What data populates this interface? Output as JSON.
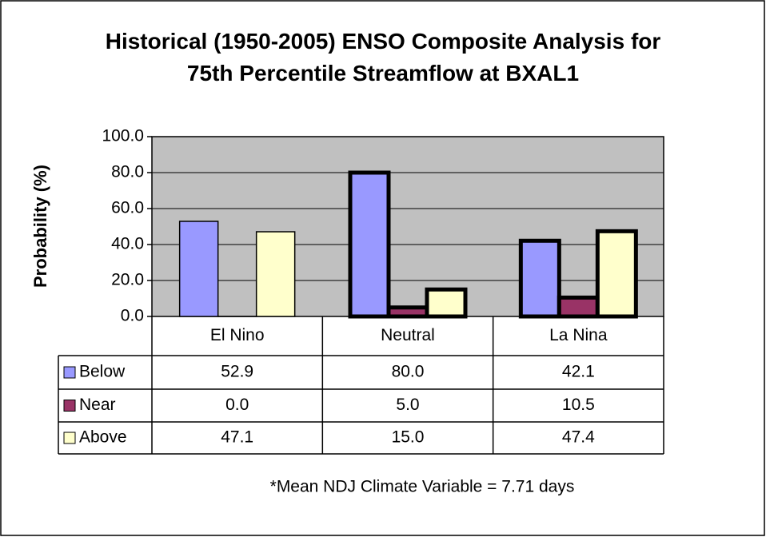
{
  "chart_data": {
    "type": "bar",
    "title": "Historical (1950-2005) ENSO Composite Analysis for 75th Percentile Streamflow at BXAL1",
    "y_label": "Probability (%)",
    "categories": [
      "El Nino",
      "Neutral",
      "La Nina"
    ],
    "series": [
      {
        "name": "Below",
        "color": "#9999ff",
        "values": [
          52.9,
          80,
          42.1
        ],
        "value_labels": [
          "52.9",
          "80.0",
          "42.1"
        ]
      },
      {
        "name": "Near",
        "color": "#993366",
        "values": [
          0,
          5,
          10.5
        ],
        "value_labels": [
          "0.0",
          "5.0",
          "10.5"
        ]
      },
      {
        "name": "Above",
        "color": "#ffffcc",
        "values": [
          47.1,
          15,
          47.4
        ],
        "value_labels": [
          "47.1",
          "15.0",
          "47.4"
        ]
      }
    ],
    "thick_border": [
      false,
      true,
      true
    ],
    "ylim": [
      0,
      100
    ],
    "yticks": [
      {
        "value": 0,
        "label": "0.0"
      },
      {
        "value": 20,
        "label": "20.0"
      },
      {
        "value": 40,
        "label": "40.0"
      },
      {
        "value": 60,
        "label": "60.0"
      },
      {
        "value": 80,
        "label": "80.0"
      },
      {
        "value": 100,
        "label": "100.0"
      }
    ],
    "grid": true,
    "data_table": true,
    "footnote": "*Mean NDJ Climate Variable = 7.71 days"
  }
}
